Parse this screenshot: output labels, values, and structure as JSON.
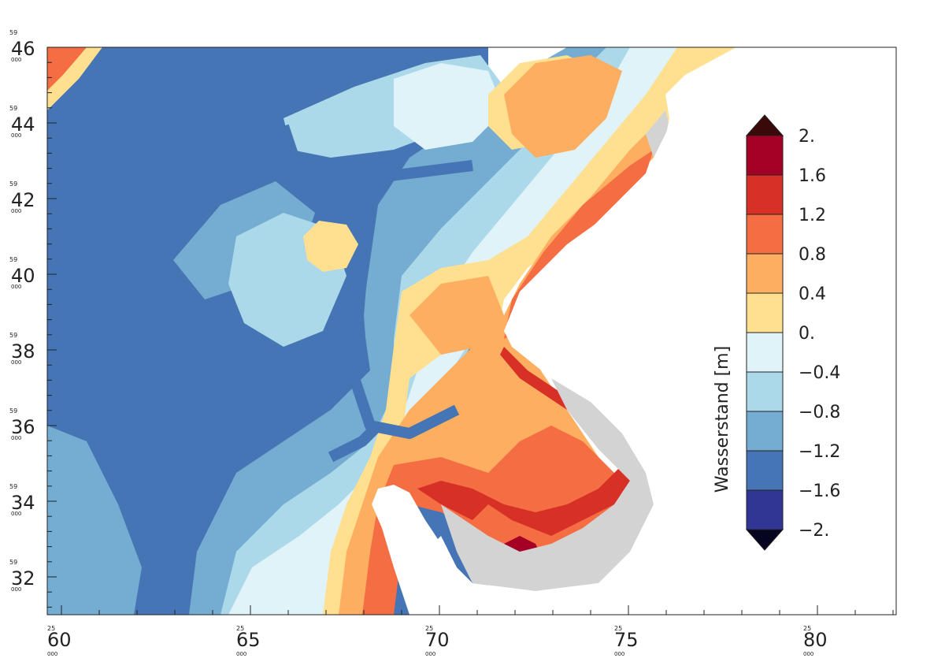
{
  "map": {
    "x_axis": {
      "ticks": [
        {
          "major": "60",
          "prefix": "25",
          "suffix": "000"
        },
        {
          "major": "65",
          "prefix": "25",
          "suffix": "000"
        },
        {
          "major": "70",
          "prefix": "25",
          "suffix": "000"
        },
        {
          "major": "75",
          "prefix": "25",
          "suffix": "000"
        },
        {
          "major": "80",
          "prefix": "25",
          "suffix": "000"
        }
      ]
    },
    "y_axis": {
      "ticks": [
        {
          "major": "46",
          "prefix": "59",
          "suffix": "000"
        },
        {
          "major": "44",
          "prefix": "59",
          "suffix": "000"
        },
        {
          "major": "42",
          "prefix": "59",
          "suffix": "000"
        },
        {
          "major": "40",
          "prefix": "59",
          "suffix": "000"
        },
        {
          "major": "38",
          "prefix": "59",
          "suffix": "000"
        },
        {
          "major": "36",
          "prefix": "59",
          "suffix": "000"
        },
        {
          "major": "34",
          "prefix": "59",
          "suffix": "000"
        },
        {
          "major": "32",
          "prefix": "59",
          "suffix": "000"
        }
      ]
    },
    "colorbar": {
      "title": "Wasserstand [m]",
      "labels": [
        "2.",
        "1.6",
        "1.2",
        "0.8",
        "0.4",
        "0.",
        "−0.4",
        "−0.8",
        "−1.2",
        "−1.6",
        "−2."
      ],
      "bins_top_to_bottom": [
        "#a50026",
        "#d73027",
        "#f46d43",
        "#fdae61",
        "#fee090",
        "#e0f3f8",
        "#abd9e9",
        "#74add1",
        "#4575b4",
        "#313695"
      ],
      "over_color": "#3a0a0a",
      "under_color": "#050520"
    },
    "colors": {
      "dry_land": "#d3d3d3",
      "background": "#ffffff"
    }
  }
}
